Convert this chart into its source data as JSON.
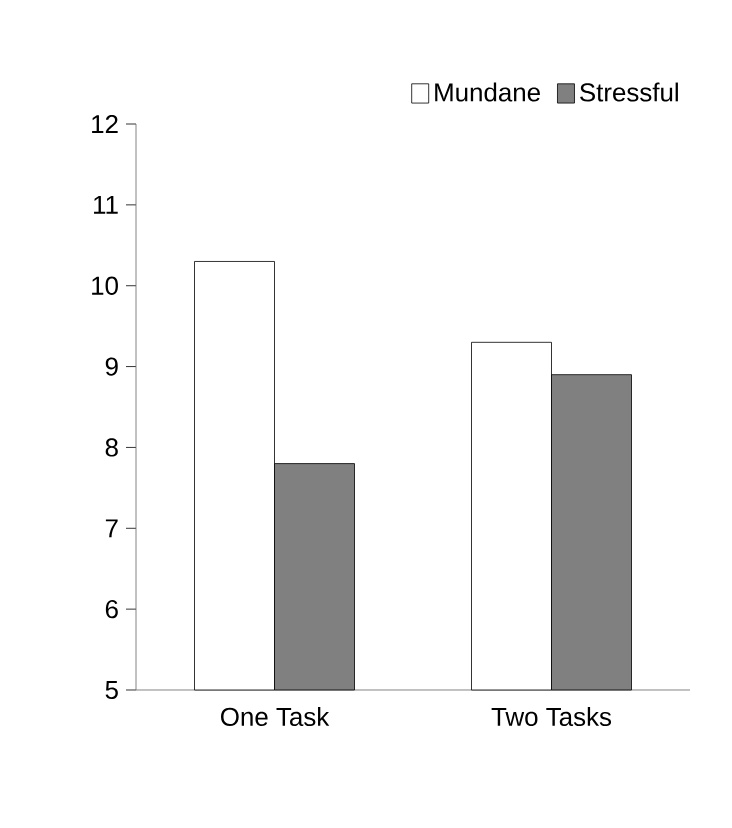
{
  "chart_data": {
    "type": "bar",
    "categories": [
      "One Task",
      "Two Tasks"
    ],
    "series": [
      {
        "name": "Mundane",
        "color": "#ffffff",
        "values": [
          10.3,
          9.3
        ]
      },
      {
        "name": "Stressful",
        "color": "#808080",
        "values": [
          7.8,
          8.9
        ]
      }
    ],
    "ylim": [
      5,
      12
    ],
    "yticks": [
      5,
      6,
      7,
      8,
      9,
      10,
      11,
      12
    ],
    "grid": false,
    "legend": "top right"
  }
}
